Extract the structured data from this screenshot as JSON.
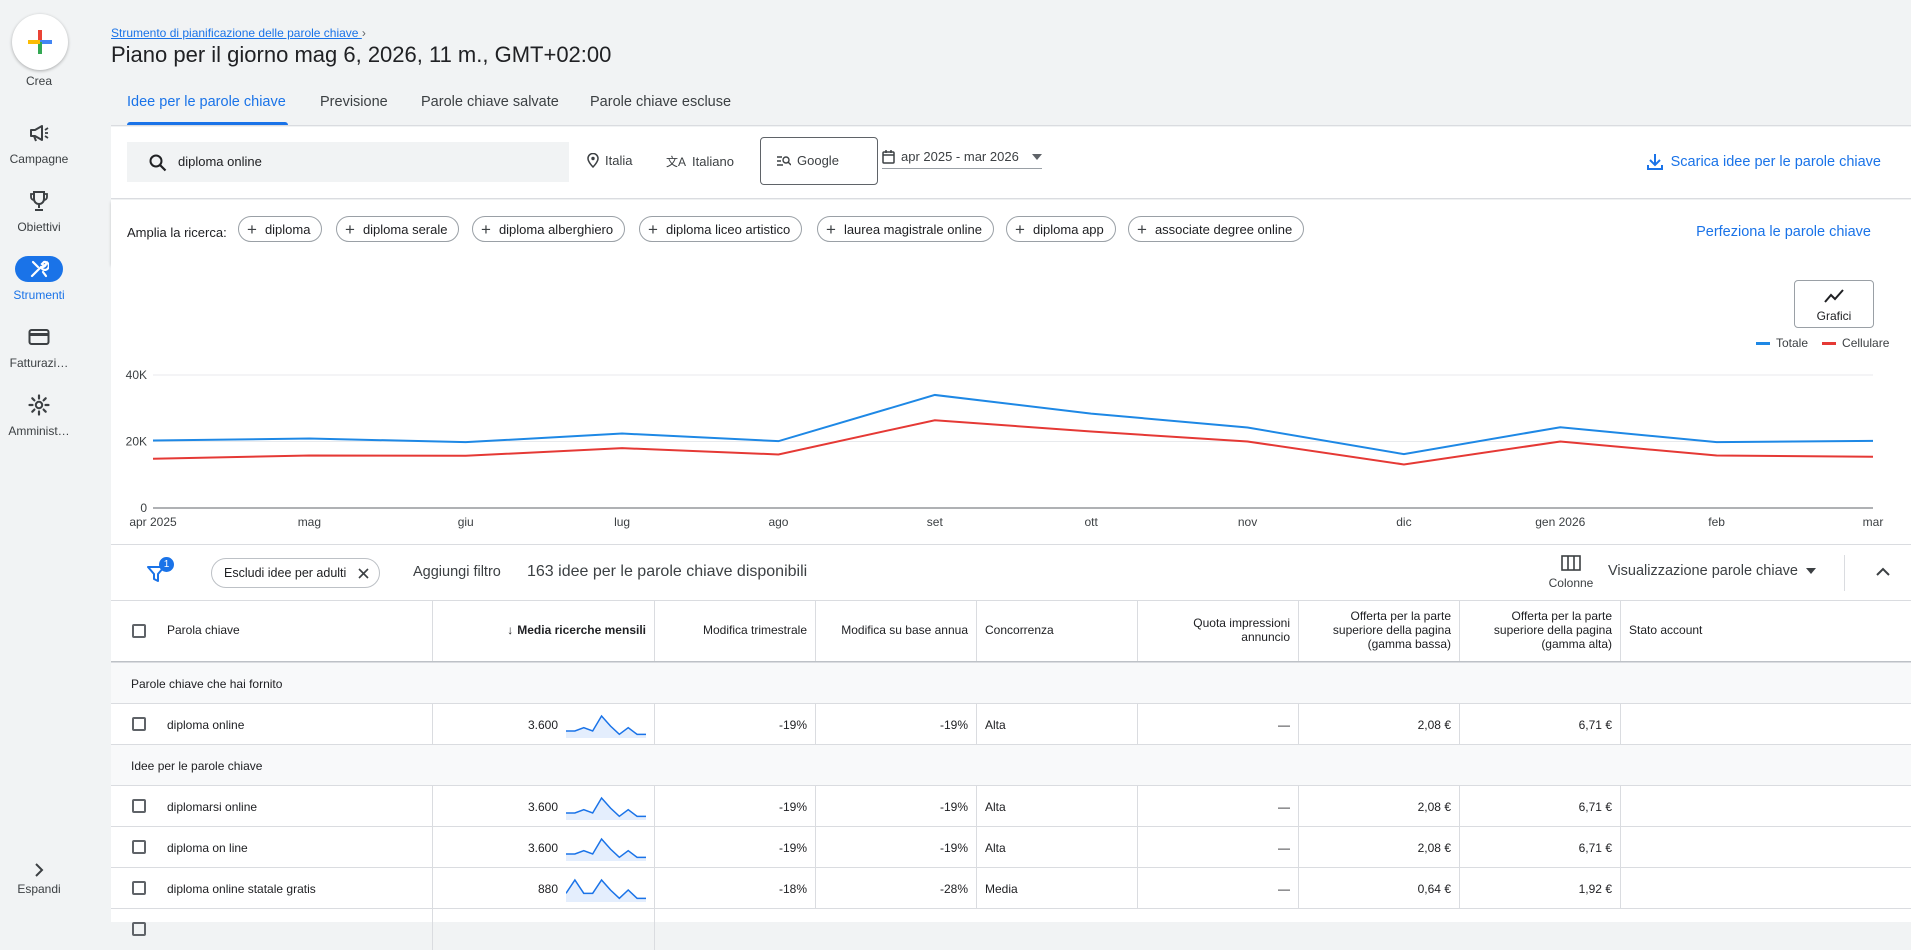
{
  "rail": {
    "create": "Crea",
    "items": [
      {
        "label": "Campagne",
        "icon": "megaphone-icon"
      },
      {
        "label": "Obiettivi",
        "icon": "trophy-icon"
      },
      {
        "label": "Strumenti",
        "icon": "tools-icon"
      },
      {
        "label": "Fatturazi…",
        "icon": "credit-card-icon"
      },
      {
        "label": "Amminist…",
        "icon": "gear-icon"
      }
    ],
    "expand": "Espandi"
  },
  "header": {
    "breadcrumb": "Strumento di pianificazione delle parole chiave",
    "title": "Piano per il giorno mag 6, 2026, 11 m., GMT+02:00"
  },
  "tabs": [
    "Idee per le parole chiave",
    "Previsione",
    "Parole chiave salvate",
    "Parole chiave escluse"
  ],
  "search": {
    "query": "diploma online",
    "location": "Italia",
    "language": "Italiano",
    "network": "Google",
    "date_range": "apr 2025 - mar 2026",
    "download": "Scarica idee per le parole chiave"
  },
  "broaden": {
    "label": "Amplia la ricerca:",
    "chips": [
      "diploma",
      "diploma serale",
      "diploma alberghiero",
      "diploma liceo artistico",
      "laurea magistrale online",
      "diploma app",
      "associate degree online"
    ],
    "refine": "Perfeziona le parole chiave"
  },
  "chart_toggle": "Grafici",
  "chart_data": {
    "type": "line",
    "x": [
      "apr 2025",
      "mag",
      "giu",
      "lug",
      "ago",
      "set",
      "ott",
      "nov",
      "dic",
      "gen 2026",
      "feb",
      "mar"
    ],
    "series": [
      {
        "name": "Totale",
        "color": "#1e88e5",
        "values": [
          20300,
          20900,
          19800,
          22400,
          20100,
          34000,
          28400,
          24200,
          16200,
          24300,
          19800,
          20200
        ]
      },
      {
        "name": "Cellulare",
        "color": "#e53935",
        "values": [
          14800,
          15800,
          15700,
          18000,
          16100,
          26400,
          23000,
          20000,
          13100,
          20000,
          15800,
          15400
        ]
      }
    ],
    "yticks": [
      "0",
      "20K",
      "40K"
    ],
    "ylim": [
      0,
      40000
    ],
    "legend_position": "top-right"
  },
  "toolbar": {
    "filter_badge": "1",
    "exclude_chip": "Escludi idee per adulti",
    "add_filter": "Aggiungi filtro",
    "count_text": "163 idee per le parole chiave disponibili",
    "columns": "Colonne",
    "view": "Visualizzazione parole chiave"
  },
  "table": {
    "headers": [
      "Parola chiave",
      "Media ricerche mensili",
      "Modifica trimestrale",
      "Modifica su base annua",
      "Concorrenza",
      "Quota impressioni annuncio",
      "Offerta per la parte superiore della pagina (gamma bassa)",
      "Offerta per la parte superiore della pagina (gamma alta)",
      "Stato account"
    ],
    "group1": "Parole chiave che hai fornito",
    "group2": "Idee per le parole chiave",
    "rows": [
      {
        "keyword": "diploma online",
        "avg": "3.600",
        "qoq": "-19%",
        "yoy": "-19%",
        "comp": "Alta",
        "share": "—",
        "low": "2,08 €",
        "high": "6,71 €",
        "trend": [
          3,
          3,
          5,
          3,
          12,
          6,
          1,
          5,
          1,
          1
        ]
      },
      {
        "keyword": "diplomarsi online",
        "avg": "3.600",
        "qoq": "-19%",
        "yoy": "-19%",
        "comp": "Alta",
        "share": "—",
        "low": "2,08 €",
        "high": "6,71 €",
        "trend": [
          3,
          3,
          5,
          3,
          12,
          6,
          1,
          5,
          1,
          1
        ]
      },
      {
        "keyword": "diploma on line",
        "avg": "3.600",
        "qoq": "-19%",
        "yoy": "-19%",
        "comp": "Alta",
        "share": "—",
        "low": "2,08 €",
        "high": "6,71 €",
        "trend": [
          3,
          3,
          5,
          3,
          12,
          6,
          1,
          5,
          1,
          1
        ]
      },
      {
        "keyword": "diploma online statale gratis",
        "avg": "880",
        "qoq": "-18%",
        "yoy": "-28%",
        "comp": "Media",
        "share": "—",
        "low": "0,64 €",
        "high": "1,92 €",
        "trend": [
          4,
          12,
          4,
          4,
          12,
          6,
          1,
          6,
          1,
          1
        ]
      }
    ]
  }
}
